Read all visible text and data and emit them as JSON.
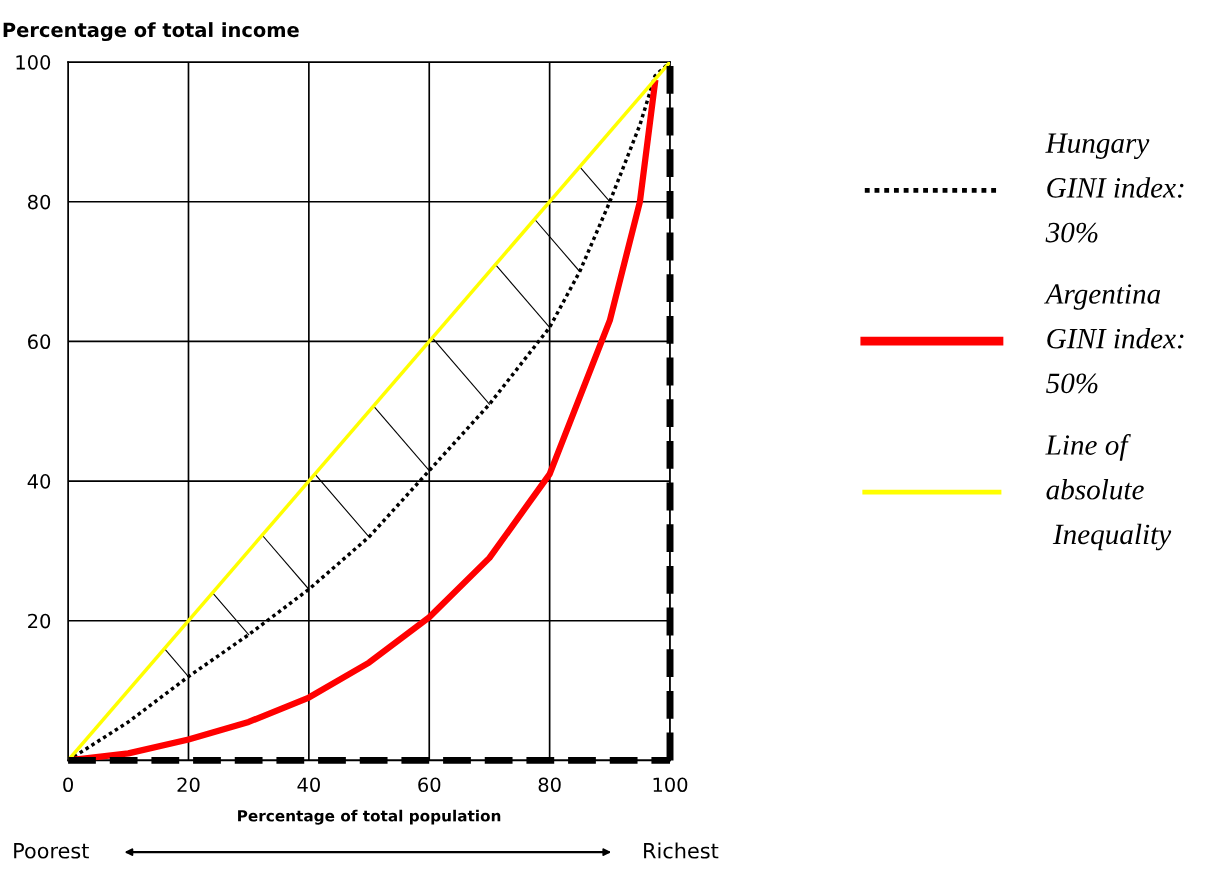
{
  "chart_data": {
    "type": "line",
    "ylabel": "Percentage of total income",
    "xlabel": "Percentage of total population",
    "xlim": [
      0,
      100
    ],
    "ylim": [
      0,
      100
    ],
    "xticks": [
      0,
      20,
      40,
      60,
      80,
      100
    ],
    "yticks": [
      {
        "value": 0,
        "label": null
      },
      20,
      40,
      60,
      80,
      100
    ],
    "grid": true,
    "legend": "right",
    "series": [
      {
        "name": "Hungary\nGINI index:\n30%",
        "color": "#000000",
        "line_style": "dotted",
        "x": [
          0,
          10,
          20,
          30,
          40,
          50,
          60,
          70,
          80,
          85,
          90,
          95,
          97.5,
          100
        ],
        "values": [
          0,
          5.5,
          12,
          18,
          24.5,
          32,
          41.5,
          51,
          62,
          70,
          80,
          91,
          98,
          100
        ]
      },
      {
        "name": "Argentina\nGINI index:\n50%",
        "color": "#ff0000",
        "line_style": "solid",
        "x": [
          0,
          10,
          20,
          30,
          40,
          50,
          60,
          70,
          80,
          90,
          95,
          97.5
        ],
        "values": [
          0,
          1,
          3,
          5.5,
          9,
          14,
          20.5,
          29,
          41,
          63,
          80,
          97
        ]
      },
      {
        "name": "Line of\nabsolute\n Inequality",
        "color": "#ffff00",
        "line_style": "solid",
        "x": [
          0,
          100
        ],
        "values": [
          0,
          100
        ]
      }
    ],
    "ref_lines": [
      {
        "axis": "y",
        "value": 0,
        "color": "#000000",
        "line_style": "dashed"
      },
      {
        "axis": "x",
        "value": 100,
        "color": "#000000",
        "line_style": "dashed"
      }
    ],
    "annotations": [
      "Poorest",
      "Richest"
    ]
  }
}
